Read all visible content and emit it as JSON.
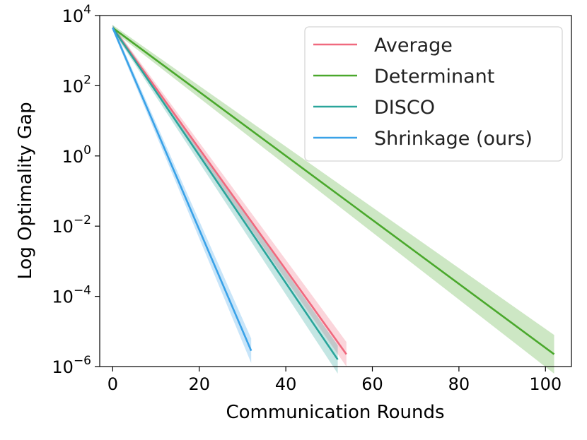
{
  "chart_data": {
    "type": "line",
    "title": "",
    "xlabel": "Communication Rounds",
    "ylabel": "Log Optimality Gap",
    "yscale": "log",
    "xlim": [
      -3,
      106
    ],
    "ylim_exp": [
      -6,
      4
    ],
    "xticks": [
      0,
      20,
      40,
      60,
      80,
      100
    ],
    "yticks": [
      {
        "base": "10",
        "exp": "4",
        "value_exp": 4
      },
      {
        "base": "10",
        "exp": "2",
        "value_exp": 2
      },
      {
        "base": "10",
        "exp": "0",
        "value_exp": 0
      },
      {
        "base": "10",
        "exp": "−2",
        "value_exp": -2
      },
      {
        "base": "10",
        "exp": "−4",
        "value_exp": -4
      },
      {
        "base": "10",
        "exp": "−6",
        "value_exp": -6
      }
    ],
    "legend_position": "top-right",
    "series": [
      {
        "name": "Average",
        "color": "#f0697e",
        "x": [
          0,
          54
        ],
        "log10_y": [
          3.65,
          -5.65
        ],
        "band_log10": [
          0.08,
          0.35
        ]
      },
      {
        "name": "Determinant",
        "color": "#4aa82c",
        "x": [
          0,
          102
        ],
        "log10_y": [
          3.65,
          -5.65
        ],
        "band_log10": [
          0.08,
          0.55
        ]
      },
      {
        "name": "DISCO",
        "color": "#2aa59b",
        "x": [
          0,
          52
        ],
        "log10_y": [
          3.65,
          -5.8
        ],
        "band_log10": [
          0.08,
          0.4
        ]
      },
      {
        "name": "Shrinkage (ours)",
        "color": "#3aa2e8",
        "x": [
          0,
          32
        ],
        "log10_y": [
          3.65,
          -5.55
        ],
        "band_log10": [
          0.08,
          0.35
        ]
      }
    ]
  }
}
